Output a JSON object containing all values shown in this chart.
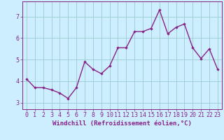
{
  "x": [
    0,
    1,
    2,
    3,
    4,
    5,
    6,
    7,
    8,
    9,
    10,
    11,
    12,
    13,
    14,
    15,
    16,
    17,
    18,
    19,
    20,
    21,
    22,
    23
  ],
  "y": [
    4.1,
    3.7,
    3.7,
    3.6,
    3.45,
    3.2,
    3.7,
    4.9,
    4.55,
    4.35,
    4.7,
    5.55,
    5.55,
    6.3,
    6.3,
    6.45,
    7.3,
    6.2,
    6.5,
    6.65,
    5.55,
    5.05,
    5.5,
    4.55
  ],
  "line_color": "#882288",
  "marker": "D",
  "marker_size": 1.8,
  "bg_color": "#cceeff",
  "grid_color": "#99cccc",
  "xlabel": "Windchill (Refroidissement éolien,°C)",
  "xlabel_fontsize": 6.5,
  "yticks": [
    3,
    4,
    5,
    6,
    7
  ],
  "xtick_labels": [
    "0",
    "1",
    "2",
    "3",
    "4",
    "5",
    "6",
    "7",
    "8",
    "9",
    "10",
    "11",
    "12",
    "13",
    "14",
    "15",
    "16",
    "17",
    "18",
    "19",
    "20",
    "21",
    "22",
    "23"
  ],
  "ylim": [
    2.7,
    7.7
  ],
  "xlim": [
    -0.5,
    23.5
  ],
  "tick_fontsize": 6.0,
  "line_width": 1.0
}
